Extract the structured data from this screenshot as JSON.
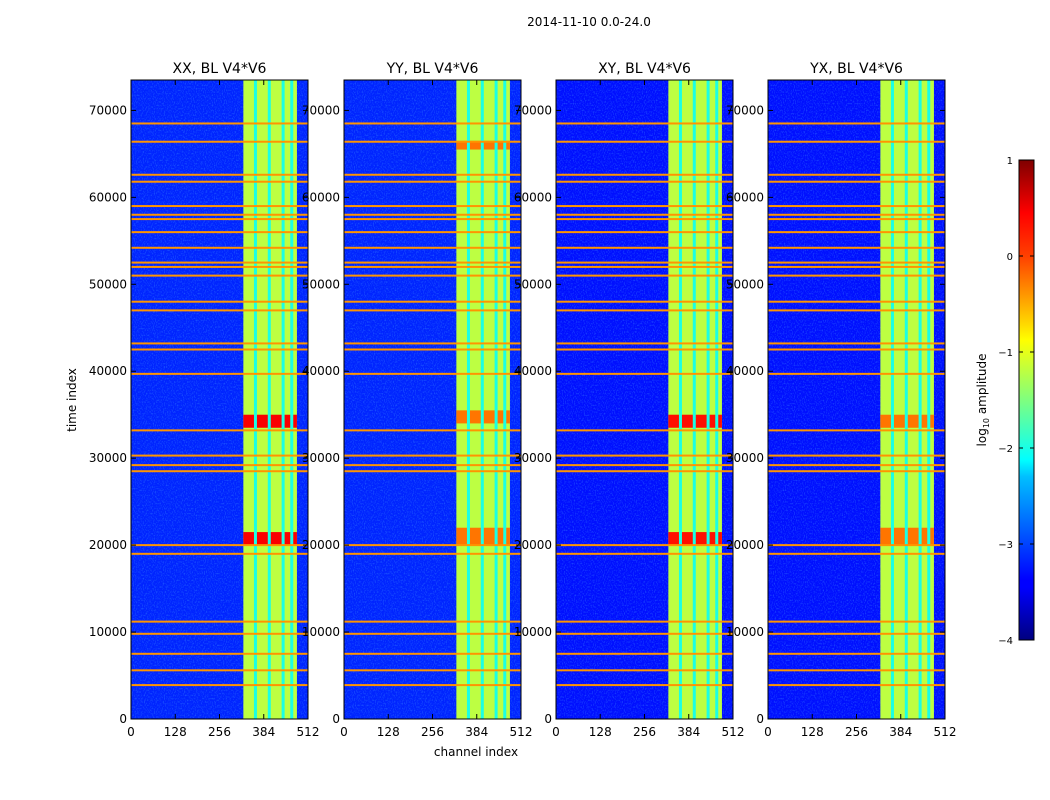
{
  "figure_title": "2014-11-10 0.0-24.0",
  "shared": {
    "xlabel": "channel index",
    "ylabel": "time index",
    "xlim": [
      0,
      512
    ],
    "ylim": [
      0,
      73500
    ],
    "xticks": [
      0,
      128,
      256,
      384,
      512
    ],
    "yticks": [
      0,
      10000,
      20000,
      30000,
      40000,
      50000,
      60000,
      70000
    ]
  },
  "colorbar": {
    "label_prefix": "log",
    "label_sub": "10",
    "label_suffix": " amplitude",
    "range": [
      -4,
      1
    ],
    "ticks": [
      1,
      0,
      -1,
      -2,
      -3,
      -4
    ],
    "tick_labels": [
      "1",
      "0",
      "−1",
      "−2",
      "−3",
      "−4"
    ],
    "colormap": "jet"
  },
  "chart_data": [
    {
      "type": "heatmap",
      "title": "XX, BL V4*V6",
      "bright_band_channels": [
        325,
        480
      ],
      "vertical_gap_channels": [
        360,
        400,
        440,
        465
      ],
      "flag_rows": [
        3900,
        5600,
        7500,
        9800,
        11200,
        19000,
        20000,
        28500,
        29200,
        30300,
        33200,
        39700,
        42500,
        43200,
        47000,
        48000,
        51000,
        52000,
        52500,
        54200,
        56000,
        57500,
        58000,
        59000,
        61800,
        62600,
        66400,
        68500
      ],
      "background_log_amplitude": -3.2,
      "band_log_amplitude": -1.2,
      "peak_log_amplitude": 0.4,
      "peak_time_ranges": [
        [
          20000,
          21500
        ],
        [
          33500,
          35000
        ]
      ]
    },
    {
      "type": "heatmap",
      "title": "YY, BL V4*V6",
      "bright_band_channels": [
        325,
        480
      ],
      "vertical_gap_channels": [
        360,
        400,
        440,
        465
      ],
      "flag_rows": [
        3900,
        5600,
        7500,
        9800,
        11200,
        19000,
        20000,
        28500,
        29200,
        30300,
        33200,
        39700,
        42500,
        43200,
        47000,
        48000,
        51000,
        52000,
        52500,
        54200,
        56000,
        57500,
        58000,
        59000,
        61800,
        62600,
        66400,
        68500
      ],
      "background_log_amplitude": -3.2,
      "band_log_amplitude": -1.2,
      "peak_log_amplitude": -0.2,
      "peak_time_ranges": [
        [
          20000,
          22000
        ],
        [
          34000,
          35500
        ],
        [
          65500,
          66500
        ]
      ]
    },
    {
      "type": "heatmap",
      "title": "XY, BL V4*V6",
      "bright_band_channels": [
        325,
        480
      ],
      "vertical_gap_channels": [
        360,
        400,
        440,
        465
      ],
      "flag_rows": [
        3900,
        5600,
        7500,
        9800,
        11200,
        19000,
        20000,
        28500,
        29200,
        30300,
        33200,
        39700,
        42500,
        43200,
        47000,
        48000,
        51000,
        52000,
        52500,
        54200,
        56000,
        57500,
        58000,
        59000,
        61800,
        62600,
        66400,
        68500
      ],
      "background_log_amplitude": -3.3,
      "band_log_amplitude": -1.2,
      "peak_log_amplitude": 0.3,
      "peak_time_ranges": [
        [
          20000,
          21500
        ],
        [
          33500,
          35000
        ]
      ]
    },
    {
      "type": "heatmap",
      "title": "YX, BL V4*V6",
      "bright_band_channels": [
        325,
        480
      ],
      "vertical_gap_channels": [
        360,
        400,
        440,
        465
      ],
      "flag_rows": [
        3900,
        5600,
        7500,
        9800,
        11200,
        19000,
        20000,
        28500,
        29200,
        30300,
        33200,
        39700,
        42500,
        43200,
        47000,
        48000,
        51000,
        52000,
        52500,
        54200,
        56000,
        57500,
        58000,
        59000,
        61800,
        62600,
        66400,
        68500
      ],
      "background_log_amplitude": -3.3,
      "band_log_amplitude": -1.2,
      "peak_log_amplitude": -0.2,
      "peak_time_ranges": [
        [
          20000,
          22000
        ],
        [
          33500,
          35000
        ]
      ]
    }
  ]
}
